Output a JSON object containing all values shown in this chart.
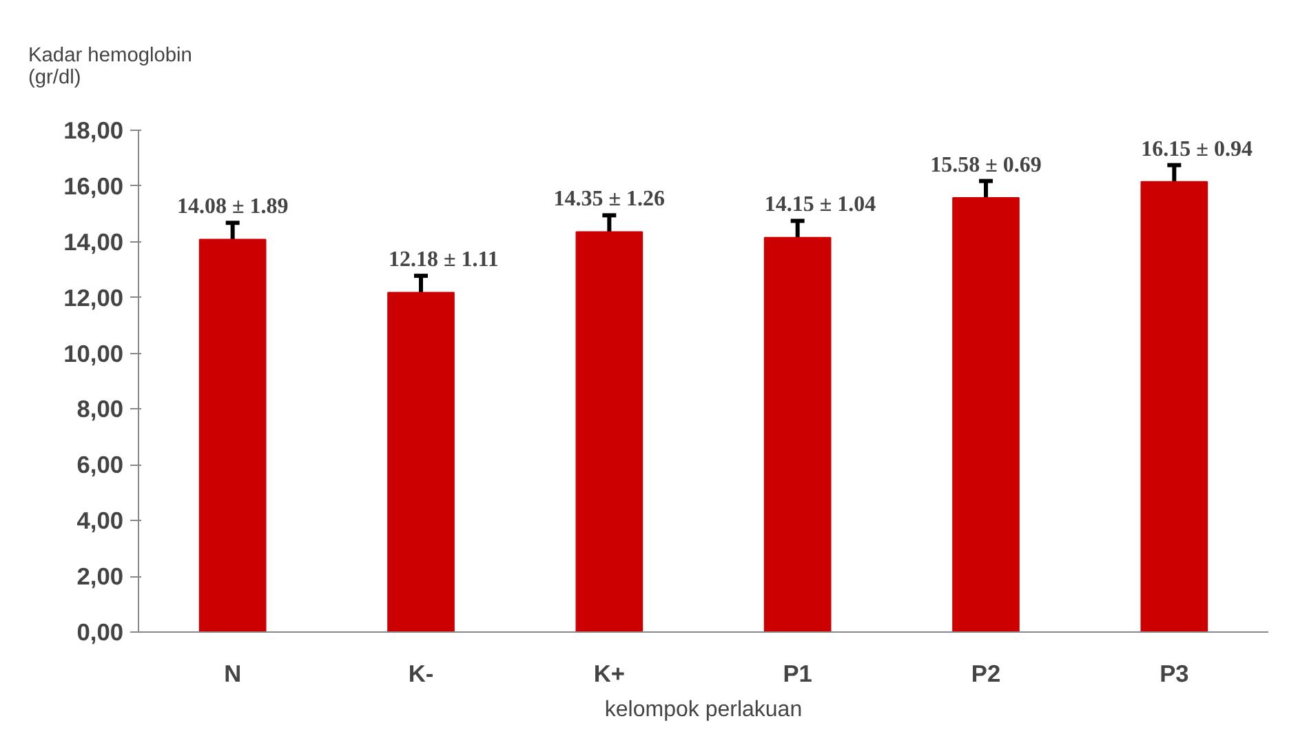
{
  "chart_data": {
    "type": "bar",
    "xlabel": "kelompok perlakuan",
    "ylabel": "Kadar hemoglobin\n(gr/dl)",
    "categories": [
      "N",
      "K-",
      "K+",
      "P1",
      "P2",
      "P3"
    ],
    "values": [
      14.08,
      12.18,
      14.35,
      14.15,
      15.58,
      16.15
    ],
    "errors": [
      0.6,
      0.6,
      0.6,
      0.6,
      0.6,
      0.6
    ],
    "value_labels": [
      "14.08 ± 1.89",
      "12.18 ± 1.11",
      "14.35 ± 1.26",
      "14.15 ± 1.04",
      "15.58 ± 0.69",
      "16.15 ± 0.94"
    ],
    "color": "#cc0000",
    "ylim": [
      0,
      18
    ],
    "yticks": [
      {
        "value": 0,
        "label": "0,00"
      },
      {
        "value": 2,
        "label": "2,00"
      },
      {
        "value": 4,
        "label": "4,00"
      },
      {
        "value": 6,
        "label": "6,00"
      },
      {
        "value": 8,
        "label": "8,00"
      },
      {
        "value": 10,
        "label": "10,00"
      },
      {
        "value": 12,
        "label": "12,00"
      },
      {
        "value": 14,
        "label": "14,00"
      },
      {
        "value": 16,
        "label": "16,00"
      },
      {
        "value": 18,
        "label": "18,00"
      }
    ],
    "grid": false
  }
}
